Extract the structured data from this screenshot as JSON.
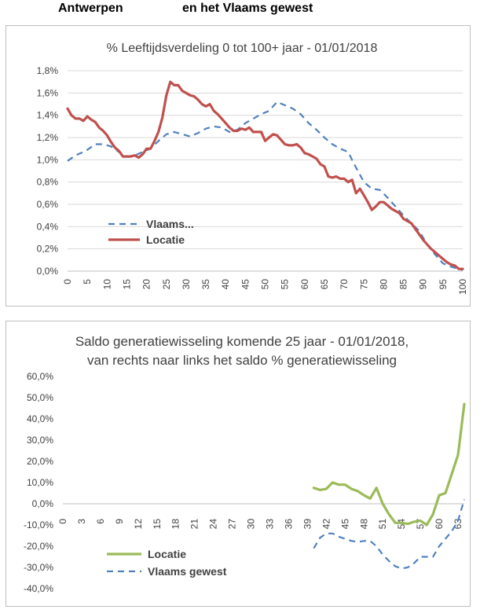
{
  "header": {
    "left": "Antwerpen",
    "right": "en het Vlaams gewest"
  },
  "colors": {
    "locatie_1": "#c0504d",
    "vlaams": "#4f81bd",
    "locatie_2": "#9bbb59",
    "grid": "#d9d9d9",
    "axis": "#bfbfbf"
  },
  "chart_data": [
    {
      "type": "line",
      "title": "% Leeftijdsverdeling 0 tot 100+ jaar - 01/01/2018",
      "ylim": [
        0,
        1.8
      ],
      "yticks": [
        "0,0%",
        "0,2%",
        "0,4%",
        "0,6%",
        "0,8%",
        "1,0%",
        "1,2%",
        "1,4%",
        "1,6%",
        "1,8%"
      ],
      "xlim": [
        0,
        100
      ],
      "xticks": [
        "0",
        "5",
        "10",
        "15",
        "20",
        "25",
        "30",
        "35",
        "40",
        "45",
        "50",
        "55",
        "60",
        "65",
        "70",
        "75",
        "80",
        "85",
        "90",
        "95",
        "100"
      ],
      "grid": true,
      "legend": "bottom-left",
      "series": [
        {
          "name": "Vlaams...",
          "style": "dashed",
          "x": [
            0,
            2,
            4,
            5,
            7,
            9,
            11,
            13,
            15,
            17,
            19,
            21,
            23,
            25,
            27,
            29,
            31,
            33,
            35,
            37,
            39,
            41,
            43,
            45,
            47,
            49,
            51,
            53,
            55,
            57,
            59,
            61,
            63,
            65,
            67,
            69,
            71,
            73,
            75,
            77,
            79,
            81,
            83,
            85,
            87,
            89,
            91,
            93,
            95,
            97,
            99,
            100
          ],
          "y": [
            0.99,
            1.04,
            1.07,
            1.09,
            1.14,
            1.14,
            1.12,
            1.07,
            1.03,
            1.04,
            1.07,
            1.1,
            1.17,
            1.23,
            1.25,
            1.23,
            1.21,
            1.24,
            1.28,
            1.3,
            1.29,
            1.25,
            1.27,
            1.33,
            1.37,
            1.41,
            1.44,
            1.52,
            1.49,
            1.46,
            1.41,
            1.33,
            1.27,
            1.2,
            1.14,
            1.1,
            1.07,
            0.93,
            0.8,
            0.74,
            0.73,
            0.66,
            0.58,
            0.5,
            0.43,
            0.36,
            0.24,
            0.15,
            0.07,
            0.04,
            0.02,
            0.01
          ]
        },
        {
          "name": "Locatie",
          "style": "solid",
          "x": [
            0,
            1,
            2,
            3,
            4,
            5,
            6,
            7,
            8,
            9,
            10,
            11,
            12,
            13,
            14,
            15,
            16,
            17,
            18,
            19,
            20,
            21,
            22,
            23,
            24,
            25,
            26,
            27,
            28,
            29,
            30,
            31,
            32,
            33,
            34,
            35,
            36,
            37,
            38,
            39,
            40,
            41,
            42,
            43,
            44,
            45,
            46,
            47,
            48,
            49,
            50,
            51,
            52,
            53,
            54,
            55,
            56,
            57,
            58,
            59,
            60,
            61,
            62,
            63,
            64,
            65,
            66,
            67,
            68,
            69,
            70,
            71,
            72,
            73,
            74,
            75,
            76,
            77,
            78,
            79,
            80,
            81,
            82,
            83,
            84,
            85,
            86,
            87,
            88,
            89,
            90,
            91,
            92,
            93,
            94,
            95,
            96,
            97,
            98,
            99,
            100
          ],
          "y": [
            1.46,
            1.4,
            1.37,
            1.37,
            1.35,
            1.39,
            1.36,
            1.34,
            1.29,
            1.26,
            1.22,
            1.16,
            1.11,
            1.08,
            1.03,
            1.03,
            1.03,
            1.04,
            1.02,
            1.05,
            1.1,
            1.1,
            1.17,
            1.25,
            1.38,
            1.58,
            1.7,
            1.67,
            1.67,
            1.62,
            1.6,
            1.58,
            1.57,
            1.54,
            1.5,
            1.48,
            1.5,
            1.44,
            1.41,
            1.37,
            1.33,
            1.29,
            1.26,
            1.26,
            1.28,
            1.27,
            1.29,
            1.25,
            1.25,
            1.25,
            1.17,
            1.2,
            1.23,
            1.22,
            1.18,
            1.14,
            1.13,
            1.13,
            1.14,
            1.11,
            1.06,
            1.05,
            1.03,
            1.01,
            0.96,
            0.94,
            0.85,
            0.84,
            0.85,
            0.83,
            0.83,
            0.8,
            0.82,
            0.7,
            0.74,
            0.68,
            0.62,
            0.55,
            0.58,
            0.62,
            0.62,
            0.59,
            0.56,
            0.54,
            0.52,
            0.47,
            0.45,
            0.43,
            0.38,
            0.33,
            0.28,
            0.24,
            0.2,
            0.17,
            0.14,
            0.11,
            0.08,
            0.06,
            0.05,
            0.02,
            0.02
          ]
        }
      ]
    },
    {
      "type": "line",
      "title": "Saldo generatiewisseling komende 25 jaar - 01/01/2018,",
      "subtitle": "van rechts naar links  het saldo % generatiewisseling",
      "ylim": [
        -40,
        60
      ],
      "yticks": [
        "-40,0%",
        "-30,0%",
        "-20,0%",
        "-10,0%",
        "0,0%",
        "10,0%",
        "20,0%",
        "30,0%",
        "40,0%",
        "50,0%",
        "60,0%"
      ],
      "xlim": [
        0,
        64
      ],
      "xticks": [
        "0",
        "3",
        "6",
        "9",
        "12",
        "15",
        "18",
        "21",
        "24",
        "27",
        "30",
        "33",
        "36",
        "39",
        "42",
        "45",
        "48",
        "51",
        "54",
        "57",
        "60",
        "63"
      ],
      "grid": false,
      "legend": "bottom-left",
      "series": [
        {
          "name": "Locatie",
          "style": "solid",
          "x": [
            40,
            41,
            42,
            43,
            44,
            45,
            46,
            47,
            48,
            49,
            50,
            51,
            52,
            53,
            54,
            55,
            56,
            57,
            58,
            59,
            60,
            61,
            62,
            63,
            64
          ],
          "y": [
            7.5,
            6.5,
            7,
            10,
            9,
            9,
            7,
            6,
            4,
            2.5,
            7.5,
            0,
            -5,
            -9,
            -9,
            -9.5,
            -8.5,
            -8,
            -10,
            -5,
            4,
            5,
            14,
            23,
            47
          ]
        },
        {
          "name": "Vlaams gewest",
          "style": "dashed",
          "x": [
            40,
            41,
            42,
            43,
            44,
            45,
            46,
            47,
            48,
            49,
            50,
            51,
            52,
            53,
            54,
            55,
            56,
            57,
            58,
            59,
            60,
            61,
            62,
            63,
            64
          ],
          "y": [
            -21,
            -16,
            -14,
            -14,
            -15.5,
            -16.5,
            -17.5,
            -18,
            -17.5,
            -17.5,
            -20,
            -24,
            -27,
            -29.5,
            -30.5,
            -30,
            -28,
            -25,
            -25,
            -25,
            -20,
            -16.5,
            -13,
            -8,
            2
          ]
        }
      ]
    }
  ]
}
